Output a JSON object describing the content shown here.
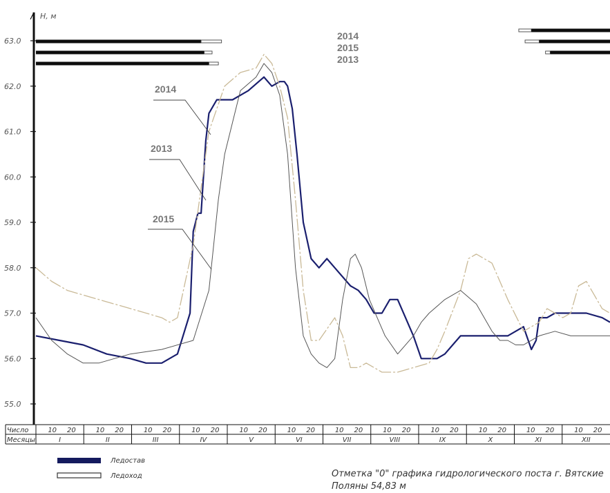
{
  "chart_data": {
    "type": "line",
    "ylabel": "Н, м",
    "ylim": [
      54.7,
      63.3
    ],
    "y_ticks": [
      "55.0",
      "56.0",
      "57.0",
      "58.0",
      "59.0",
      "60.0",
      "61.0",
      "62.0",
      "63.0"
    ],
    "y_tick_values": [
      55,
      56,
      57,
      58,
      59,
      60,
      61,
      62,
      63
    ],
    "x_range_days": [
      0,
      365
    ],
    "table": {
      "row1_label": "Число",
      "row2_label": "Месяцы",
      "day_marks": [
        "10",
        "20"
      ],
      "months": [
        "I",
        "II",
        "III",
        "IV",
        "V",
        "VI",
        "VII",
        "VIII",
        "IX",
        "X",
        "XI",
        "XII"
      ]
    },
    "series": [
      {
        "name": "2014",
        "color": "#1a1f6e",
        "x": [
          0,
          15,
          30,
          45,
          60,
          70,
          80,
          90,
          98,
          100,
          103,
          105,
          108,
          110,
          115,
          120,
          125,
          135,
          145,
          150,
          155,
          158,
          160,
          163,
          166,
          170,
          175,
          180,
          185,
          190,
          200,
          205,
          210,
          215,
          220,
          225,
          230,
          235,
          240,
          245,
          250,
          255,
          260,
          265,
          270,
          280,
          290,
          300,
          310,
          315,
          318,
          320,
          325,
          330,
          340,
          350,
          360,
          365
        ],
        "y": [
          56.5,
          56.4,
          56.3,
          56.1,
          56.0,
          55.9,
          55.9,
          56.1,
          57.0,
          58.8,
          59.2,
          59.2,
          60.8,
          61.4,
          61.7,
          61.7,
          61.7,
          61.9,
          62.2,
          62.0,
          62.1,
          62.1,
          62.0,
          61.5,
          60.5,
          59.0,
          58.2,
          58.0,
          58.2,
          58.0,
          57.6,
          57.5,
          57.3,
          57.0,
          57.0,
          57.3,
          57.3,
          56.9,
          56.5,
          56.0,
          56.0,
          56.0,
          56.1,
          56.3,
          56.5,
          56.5,
          56.5,
          56.5,
          56.7,
          56.2,
          56.4,
          56.9,
          56.9,
          57.0,
          57.0,
          57.0,
          56.9,
          56.8
        ]
      },
      {
        "name": "2013",
        "color": "#c9b996",
        "x": [
          0,
          10,
          20,
          40,
          60,
          80,
          85,
          90,
          100,
          110,
          115,
          120,
          130,
          140,
          145,
          150,
          155,
          160,
          165,
          170,
          175,
          180,
          190,
          195,
          200,
          205,
          210,
          220,
          230,
          240,
          250,
          255,
          260,
          270,
          275,
          280,
          290,
          300,
          310,
          320,
          325,
          330,
          335,
          340,
          345,
          350,
          355,
          360,
          365
        ],
        "y": [
          58.0,
          57.7,
          57.5,
          57.3,
          57.1,
          56.9,
          56.8,
          56.9,
          58.5,
          61.0,
          61.5,
          62.0,
          62.3,
          62.4,
          62.7,
          62.5,
          62.0,
          61.3,
          59.5,
          57.5,
          56.4,
          56.4,
          56.9,
          56.5,
          55.8,
          55.8,
          55.9,
          55.7,
          55.7,
          55.8,
          55.9,
          56.2,
          56.6,
          57.5,
          58.2,
          58.3,
          58.1,
          57.3,
          56.6,
          56.8,
          57.1,
          57.0,
          56.9,
          57.0,
          57.6,
          57.7,
          57.4,
          57.1,
          57.0
        ]
      },
      {
        "name": "2015",
        "color": "#555555",
        "x": [
          0,
          10,
          20,
          30,
          40,
          60,
          80,
          100,
          110,
          113,
          116,
          120,
          125,
          130,
          140,
          145,
          150,
          155,
          160,
          165,
          170,
          175,
          180,
          185,
          190,
          195,
          200,
          203,
          207,
          212,
          217,
          222,
          230,
          240,
          245,
          250,
          260,
          270,
          280,
          290,
          295,
          300,
          305,
          310,
          320,
          330,
          340,
          350,
          365
        ],
        "y": [
          56.9,
          56.4,
          56.1,
          55.9,
          55.9,
          56.1,
          56.2,
          56.4,
          57.5,
          58.5,
          59.5,
          60.5,
          61.2,
          61.9,
          62.2,
          62.5,
          62.3,
          61.8,
          60.5,
          58.0,
          56.5,
          56.1,
          55.9,
          55.8,
          56.0,
          57.3,
          58.2,
          58.3,
          58.0,
          57.3,
          56.9,
          56.5,
          56.1,
          56.5,
          56.8,
          57.0,
          57.3,
          57.5,
          57.2,
          56.6,
          56.4,
          56.4,
          56.3,
          56.3,
          56.5,
          56.6,
          56.5,
          56.5,
          56.5
        ]
      }
    ],
    "ice_bars": {
      "year_labels": [
        "2014",
        "2015",
        "2013"
      ],
      "left": [
        {
          "year": "2014",
          "start": 0,
          "freeze_end": 105,
          "drift_end": 118
        },
        {
          "year": "2015",
          "start": 0,
          "freeze_end": 107,
          "drift_end": 112
        },
        {
          "year": "2013",
          "start": 0,
          "freeze_end": 110,
          "drift_end": 116
        }
      ],
      "right": [
        {
          "year": "2014",
          "drift_start": 307,
          "freeze_start": 315,
          "end": 365
        },
        {
          "year": "2015",
          "drift_start": 311,
          "freeze_start": 320,
          "end": 365
        },
        {
          "year": "2013",
          "drift_start": 324,
          "freeze_start": 327,
          "end": 365
        }
      ]
    },
    "legend": [
      {
        "label": "Ледостав",
        "style": "filled"
      },
      {
        "label": "Ледоход",
        "style": "outline"
      }
    ],
    "note": [
      "Отметка \"0\" графика гидрологического поста г. Вятские",
      "Поляны  54,83 м"
    ]
  }
}
